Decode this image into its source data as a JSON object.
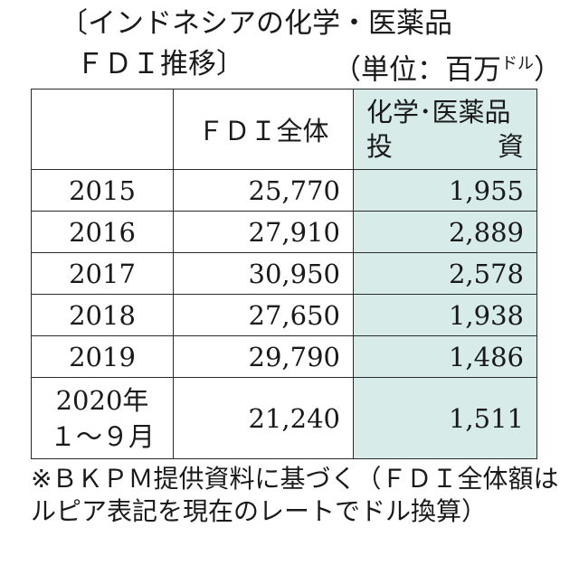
{
  "title": {
    "line1": "〔インドネシアの化学・医薬品",
    "line2": "ＦＤＩ推移〕",
    "unit_prefix": "（単位：百万",
    "unit_small": "ドル",
    "unit_suffix": "）"
  },
  "table": {
    "headers": {
      "year": "",
      "total": "ＦＤＩ全体",
      "chem_line1": "化学･医薬品",
      "chem_line2_a": "投",
      "chem_line2_b": "資"
    },
    "rows": [
      {
        "year": "2015",
        "total": "25,770",
        "chem": "1,955"
      },
      {
        "year": "2016",
        "total": "27,910",
        "chem": "2,889"
      },
      {
        "year": "2017",
        "total": "30,950",
        "chem": "2,578"
      },
      {
        "year": "2018",
        "total": "27,650",
        "chem": "1,938"
      },
      {
        "year": "2019",
        "total": "29,790",
        "chem": "1,486"
      }
    ],
    "last_row": {
      "year_line1": "2020年",
      "year_line2": "１～９月",
      "total": "21,240",
      "chem": "1,511"
    }
  },
  "note": "※ＢＫＰＭ提供資料に基づく（ＦＤＩ全体額はルピア表記を現在のレートでドル換算）",
  "colors": {
    "highlight": "#d7ece8",
    "border": "#2a2a2a"
  }
}
